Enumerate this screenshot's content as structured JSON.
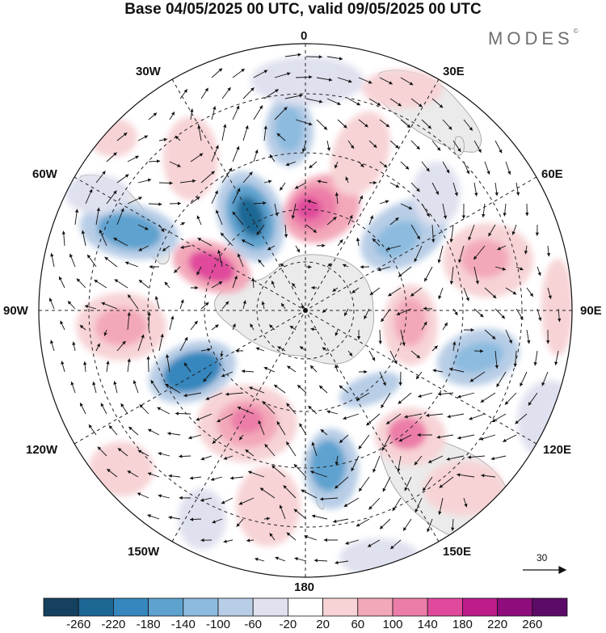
{
  "title": "Base 04/05/2025 00 UTC, valid 09/05/2025 00 UTC",
  "brand": "MODES",
  "brand_mark": "©",
  "longitude_labels": {
    "lon_0": "0",
    "lon_30e": "30E",
    "lon_60e": "60E",
    "lon_90e": "90E",
    "lon_120e": "120E",
    "lon_150e": "150E",
    "lon_180": "180",
    "lon_150w": "150W",
    "lon_120w": "120W",
    "lon_90w": "90W",
    "lon_60w": "60W",
    "lon_30w": "30W"
  },
  "reference_vector": {
    "value": "30"
  },
  "colorbar": {
    "ticks": [
      "-260",
      "-220",
      "-180",
      "-140",
      "-100",
      "-60",
      "-20",
      "20",
      "60",
      "100",
      "140",
      "180",
      "220",
      "260"
    ],
    "colors": [
      "#15405f",
      "#1d6795",
      "#3687bd",
      "#5ea2cf",
      "#8cbbdf",
      "#b8cde6",
      "#dfe1ef",
      "#ffffff",
      "#f7d3d6",
      "#f3a8b9",
      "#ec7da8",
      "#e04a9c",
      "#bd1c89",
      "#8e0c7c",
      "#5c0a68"
    ]
  },
  "chart_data": {
    "type": "heatmap",
    "projection": "south polar stereographic",
    "contour_levels": [
      -260,
      -220,
      -180,
      -140,
      -100,
      -60,
      -20,
      20,
      60,
      100,
      140,
      180,
      220,
      260
    ],
    "colors": {
      "land": "#ebebeb",
      "positive_anomaly": "#e04a9c",
      "negative_anomaly": "#3687bd"
    },
    "reference_vector_magnitude": 30
  }
}
